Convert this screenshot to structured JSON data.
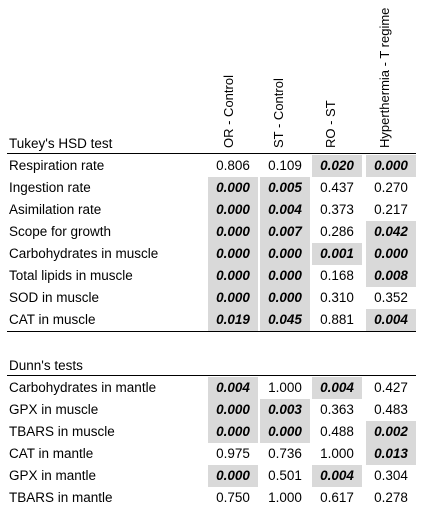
{
  "columns": [
    "OR - Control",
    "ST - Control",
    "RO - ST",
    "Hyperthermia - T regime"
  ],
  "sections": [
    {
      "title": "Tukey's HSD test",
      "rows": [
        {
          "label": "Respiration rate",
          "cells": [
            {
              "v": "0.806",
              "hl": false,
              "em": false
            },
            {
              "v": "0.109",
              "hl": false,
              "em": false
            },
            {
              "v": "0.020",
              "hl": true,
              "em": true
            },
            {
              "v": "0.000",
              "hl": true,
              "em": true
            }
          ]
        },
        {
          "label": "Ingestion rate",
          "cells": [
            {
              "v": "0.000",
              "hl": true,
              "em": true
            },
            {
              "v": "0.005",
              "hl": true,
              "em": true
            },
            {
              "v": "0.437",
              "hl": false,
              "em": false
            },
            {
              "v": "0.270",
              "hl": false,
              "em": false
            }
          ]
        },
        {
          "label": "Asimilation rate",
          "cells": [
            {
              "v": "0.000",
              "hl": true,
              "em": true
            },
            {
              "v": "0.004",
              "hl": true,
              "em": true
            },
            {
              "v": "0.373",
              "hl": false,
              "em": false
            },
            {
              "v": "0.217",
              "hl": false,
              "em": false
            }
          ]
        },
        {
          "label": "Scope for growth",
          "cells": [
            {
              "v": "0.000",
              "hl": true,
              "em": true
            },
            {
              "v": "0.007",
              "hl": true,
              "em": true
            },
            {
              "v": "0.286",
              "hl": false,
              "em": false
            },
            {
              "v": "0.042",
              "hl": true,
              "em": true
            }
          ]
        },
        {
          "label": "Carbohydrates in muscle",
          "cells": [
            {
              "v": "0.000",
              "hl": true,
              "em": true
            },
            {
              "v": "0.000",
              "hl": true,
              "em": true
            },
            {
              "v": "0.001",
              "hl": true,
              "em": true
            },
            {
              "v": "0.000",
              "hl": true,
              "em": true
            }
          ]
        },
        {
          "label": "Total lipids in muscle",
          "cells": [
            {
              "v": "0.000",
              "hl": true,
              "em": true
            },
            {
              "v": "0.000",
              "hl": true,
              "em": true
            },
            {
              "v": "0.168",
              "hl": false,
              "em": false
            },
            {
              "v": "0.008",
              "hl": true,
              "em": true
            }
          ]
        },
        {
          "label": "SOD in muscle",
          "cells": [
            {
              "v": "0.000",
              "hl": true,
              "em": true
            },
            {
              "v": "0.000",
              "hl": true,
              "em": true
            },
            {
              "v": "0.310",
              "hl": false,
              "em": false
            },
            {
              "v": "0.352",
              "hl": false,
              "em": false
            }
          ]
        },
        {
          "label": "CAT in muscle",
          "cells": [
            {
              "v": "0.019",
              "hl": true,
              "em": true
            },
            {
              "v": "0.045",
              "hl": true,
              "em": true
            },
            {
              "v": "0.881",
              "hl": false,
              "em": false
            },
            {
              "v": "0.004",
              "hl": true,
              "em": true
            }
          ]
        }
      ]
    },
    {
      "title": "Dunn's tests",
      "rows": [
        {
          "label": "Carbohydrates in mantle",
          "cells": [
            {
              "v": "0.004",
              "hl": true,
              "em": true
            },
            {
              "v": "1.000",
              "hl": false,
              "em": false
            },
            {
              "v": "0.004",
              "hl": true,
              "em": true
            },
            {
              "v": "0.427",
              "hl": false,
              "em": false
            }
          ]
        },
        {
          "label": "GPX in muscle",
          "cells": [
            {
              "v": "0.000",
              "hl": true,
              "em": true
            },
            {
              "v": "0.003",
              "hl": true,
              "em": true
            },
            {
              "v": "0.363",
              "hl": false,
              "em": false
            },
            {
              "v": "0.483",
              "hl": false,
              "em": false
            }
          ]
        },
        {
          "label": "TBARS in muscle",
          "cells": [
            {
              "v": "0.000",
              "hl": true,
              "em": true
            },
            {
              "v": "0.000",
              "hl": true,
              "em": true
            },
            {
              "v": "0.488",
              "hl": false,
              "em": false
            },
            {
              "v": "0.002",
              "hl": true,
              "em": true
            }
          ]
        },
        {
          "label": "CAT in mantle",
          "cells": [
            {
              "v": "0.975",
              "hl": false,
              "em": false
            },
            {
              "v": "0.736",
              "hl": false,
              "em": false
            },
            {
              "v": "1.000",
              "hl": false,
              "em": false
            },
            {
              "v": "0.013",
              "hl": true,
              "em": true
            }
          ]
        },
        {
          "label": "GPX in mantle",
          "cells": [
            {
              "v": "0.000",
              "hl": true,
              "em": true
            },
            {
              "v": "0.501",
              "hl": false,
              "em": false
            },
            {
              "v": "0.004",
              "hl": true,
              "em": true
            },
            {
              "v": "0.304",
              "hl": false,
              "em": false
            }
          ]
        },
        {
          "label": "TBARS in mantle",
          "cells": [
            {
              "v": "0.750",
              "hl": false,
              "em": false
            },
            {
              "v": "1.000",
              "hl": false,
              "em": false
            },
            {
              "v": "0.617",
              "hl": false,
              "em": false
            },
            {
              "v": "0.278",
              "hl": false,
              "em": false
            }
          ]
        }
      ]
    }
  ]
}
